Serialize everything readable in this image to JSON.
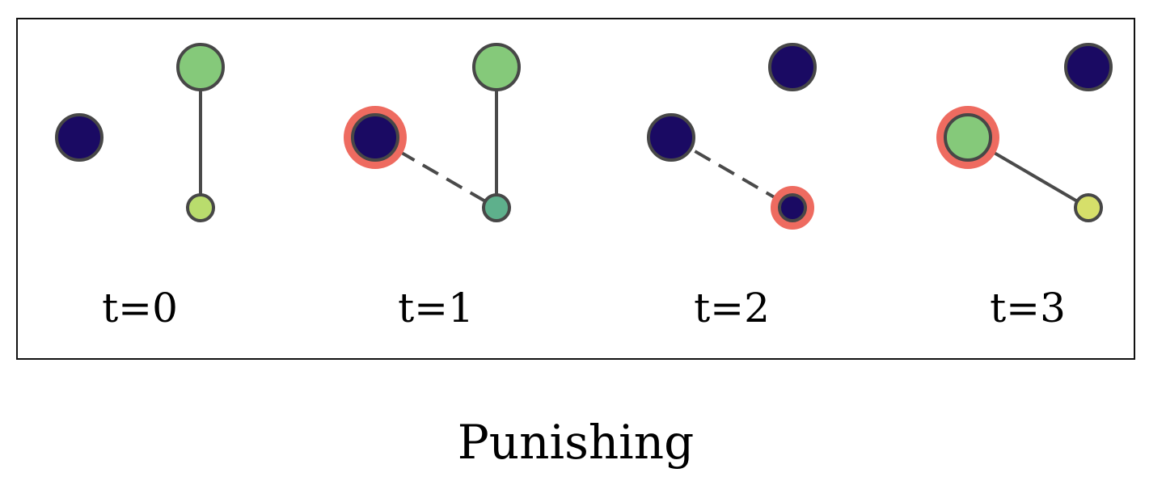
{
  "caption": "Punishing",
  "colors": {
    "dark_node": "#1a0a63",
    "green_node": "#85c97a",
    "lime_node": "#b9dc6d",
    "teal_node": "#5eb08c",
    "yellow_node": "#d6df6a",
    "edge": "#4a4a4a",
    "node_stroke": "#474747",
    "highlight_ring": "#ee6b60",
    "frame_border": "#111111"
  },
  "frames": [
    {
      "label": "t=0",
      "nodes": [
        {
          "id": "a",
          "fill": "dark_node",
          "size": "large",
          "highlight": false
        },
        {
          "id": "b",
          "fill": "green_node",
          "size": "large",
          "highlight": false
        },
        {
          "id": "c",
          "fill": "lime_node",
          "size": "small",
          "highlight": false
        }
      ],
      "edges": [
        {
          "from": "b",
          "to": "c",
          "style": "solid"
        }
      ]
    },
    {
      "label": "t=1",
      "nodes": [
        {
          "id": "a",
          "fill": "dark_node",
          "size": "large",
          "highlight": true
        },
        {
          "id": "b",
          "fill": "green_node",
          "size": "large",
          "highlight": false
        },
        {
          "id": "c",
          "fill": "teal_node",
          "size": "small",
          "highlight": false
        }
      ],
      "edges": [
        {
          "from": "b",
          "to": "c",
          "style": "solid"
        },
        {
          "from": "a",
          "to": "c",
          "style": "dashed"
        }
      ]
    },
    {
      "label": "t=2",
      "nodes": [
        {
          "id": "a",
          "fill": "dark_node",
          "size": "large",
          "highlight": false
        },
        {
          "id": "b",
          "fill": "dark_node",
          "size": "large",
          "highlight": false
        },
        {
          "id": "c",
          "fill": "dark_node",
          "size": "small",
          "highlight": true
        }
      ],
      "edges": [
        {
          "from": "a",
          "to": "c",
          "style": "dashed"
        }
      ]
    },
    {
      "label": "t=3",
      "nodes": [
        {
          "id": "a",
          "fill": "green_node",
          "size": "large",
          "highlight": true
        },
        {
          "id": "b",
          "fill": "dark_node",
          "size": "large",
          "highlight": false
        },
        {
          "id": "c",
          "fill": "yellow_node",
          "size": "small",
          "highlight": false
        }
      ],
      "edges": [
        {
          "from": "a",
          "to": "c",
          "style": "solid"
        }
      ]
    }
  ]
}
